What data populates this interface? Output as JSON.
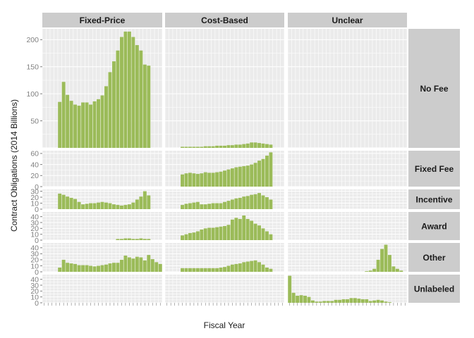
{
  "colors": {
    "bar": "#9BBB59",
    "panel_bg": "#EBEBEB",
    "grid": "#FFFFFF",
    "strip_bg": "#CCCCCC",
    "tick_text": "#7F7F7F"
  },
  "chart_data": {
    "type": "bar",
    "facet": "grid",
    "xlabel": "Fiscal Year",
    "ylabel": "Contract Obligations (2014 Billions)",
    "x_range": [
      1986,
      2016
    ],
    "columns": [
      "Fixed-Price",
      "Cost-Based",
      "Unclear"
    ],
    "rows": [
      {
        "label": "No Fee",
        "ylim": [
          0,
          220
        ],
        "yticks": [
          50,
          100,
          150,
          200
        ]
      },
      {
        "label": "Fixed Fee",
        "ylim": [
          0,
          65
        ],
        "yticks": [
          0,
          20,
          40,
          60
        ]
      },
      {
        "label": "Incentive",
        "ylim": [
          0,
          33
        ],
        "yticks": [
          0,
          10,
          20,
          30
        ]
      },
      {
        "label": "Award",
        "ylim": [
          0,
          48
        ],
        "yticks": [
          0,
          10,
          20,
          30,
          40
        ]
      },
      {
        "label": "Other",
        "ylim": [
          0,
          48
        ],
        "yticks": [
          0,
          10,
          20,
          30,
          40
        ]
      },
      {
        "label": "Unlabeled",
        "ylim": [
          0,
          48
        ],
        "yticks": [
          0,
          10,
          20,
          30,
          40
        ]
      }
    ],
    "x_tick_labels_note": "x tick labels overlap and are illegible in the original",
    "grid": true,
    "series": [
      {
        "row": "No Fee",
        "col": "Fixed-Price",
        "start": 1990,
        "values": [
          85,
          122,
          98,
          87,
          80,
          78,
          84,
          84,
          80,
          86,
          90,
          97,
          114,
          140,
          160,
          180,
          205,
          215,
          215,
          205,
          190,
          180,
          154,
          152
        ]
      },
      {
        "row": "No Fee",
        "col": "Cost-Based",
        "start": 1990,
        "values": [
          2,
          2,
          2,
          2,
          2,
          2,
          3,
          3,
          3,
          4,
          4,
          4,
          5,
          5,
          6,
          6,
          7,
          8,
          10,
          10,
          9,
          8,
          7,
          6
        ]
      },
      {
        "row": "Fixed Fee",
        "col": "Cost-Based",
        "start": 1990,
        "values": [
          22,
          24,
          25,
          24,
          23,
          24,
          26,
          25,
          25,
          26,
          27,
          29,
          31,
          33,
          35,
          36,
          37,
          38,
          40,
          43,
          47,
          50,
          56,
          62
        ]
      },
      {
        "row": "Incentive",
        "col": "Fixed-Price",
        "start": 1990,
        "values": [
          26,
          24,
          21,
          19,
          17,
          12,
          8,
          9,
          10,
          10,
          11,
          12,
          11,
          10,
          8,
          7,
          6,
          7,
          8,
          11,
          16,
          21,
          30,
          23
        ]
      },
      {
        "row": "Incentive",
        "col": "Cost-Based",
        "start": 1990,
        "values": [
          7,
          9,
          10,
          11,
          12,
          8,
          8,
          9,
          10,
          10,
          10,
          12,
          14,
          16,
          18,
          19,
          21,
          22,
          24,
          25,
          27,
          23,
          20,
          16
        ]
      },
      {
        "row": "Award",
        "col": "Fixed-Price",
        "start": 2005,
        "values": [
          2,
          2,
          3,
          3,
          2,
          2,
          3,
          2,
          2
        ]
      },
      {
        "row": "Award",
        "col": "Cost-Based",
        "start": 1990,
        "values": [
          8,
          10,
          12,
          13,
          15,
          18,
          20,
          21,
          21,
          22,
          23,
          24,
          26,
          35,
          38,
          36,
          42,
          36,
          33,
          28,
          25,
          20,
          15,
          10
        ]
      },
      {
        "row": "Other",
        "col": "Fixed-Price",
        "start": 1990,
        "values": [
          7,
          20,
          15,
          14,
          13,
          11,
          11,
          11,
          10,
          9,
          10,
          11,
          12,
          14,
          15,
          15,
          20,
          27,
          24,
          22,
          25,
          24,
          19,
          28,
          21,
          16,
          13
        ]
      },
      {
        "row": "Other",
        "col": "Cost-Based",
        "start": 1990,
        "values": [
          6,
          6,
          6,
          6,
          6,
          6,
          6,
          6,
          6,
          6,
          7,
          8,
          10,
          12,
          13,
          14,
          16,
          17,
          18,
          19,
          16,
          12,
          7,
          5
        ]
      },
      {
        "row": "Other",
        "col": "Unclear",
        "start": 2006,
        "values": [
          1,
          2,
          5,
          20,
          38,
          45,
          28,
          9,
          5,
          2
        ]
      },
      {
        "row": "Unlabeled",
        "col": "Unclear",
        "start": 1986,
        "values": [
          46,
          17,
          12,
          13,
          12,
          10,
          4,
          2,
          2,
          3,
          3,
          3,
          5,
          5,
          6,
          6,
          8,
          8,
          7,
          6,
          6,
          3,
          4,
          5,
          4,
          2,
          1
        ]
      }
    ]
  }
}
